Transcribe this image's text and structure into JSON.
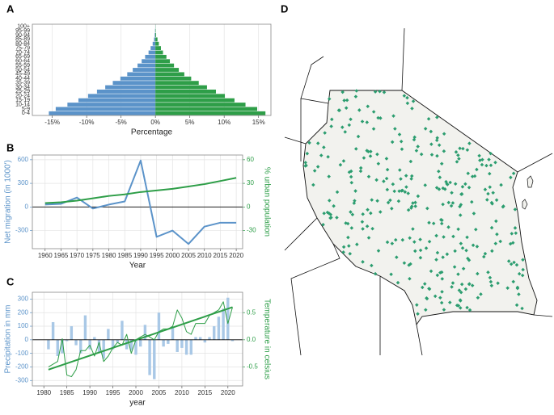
{
  "chart_data": [
    {
      "type": "bar",
      "orientation": "horizontal",
      "panel": "A",
      "categories": [
        "0-4",
        "5-9",
        "10-14",
        "15-19",
        "20-24",
        "25-29",
        "30-34",
        "35-39",
        "40-44",
        "45-49",
        "50-54",
        "55-59",
        "60-64",
        "65-69",
        "70-74",
        "75-79",
        "80-84",
        "85-89",
        "90-94",
        "95-99",
        "100+"
      ],
      "series": [
        {
          "color": "#5b93c9",
          "values": [
            -15.5,
            -14.5,
            -12.8,
            -11.2,
            -9.8,
            -8.5,
            -7.3,
            -6.2,
            -5.1,
            -4.1,
            -3.3,
            -2.6,
            -2.0,
            -1.5,
            -1.0,
            -0.7,
            -0.4,
            -0.2,
            -0.1,
            -0.05,
            -0.02
          ]
        },
        {
          "color": "#2e9e48",
          "values": [
            16.0,
            14.8,
            13.1,
            11.5,
            10.1,
            8.8,
            7.5,
            6.3,
            5.2,
            4.2,
            3.4,
            2.7,
            2.1,
            1.6,
            1.1,
            0.8,
            0.5,
            0.3,
            0.1,
            0.05,
            0.02
          ]
        }
      ],
      "xlim": [
        -17.9,
        16.8
      ],
      "xticks": [
        {
          "value": -15,
          "label": "-15%"
        },
        {
          "value": -10,
          "label": "-10%"
        },
        {
          "value": -5,
          "label": "-5%"
        },
        {
          "value": 0,
          "label": "0%"
        },
        {
          "value": 5,
          "label": "5%"
        },
        {
          "value": 10,
          "label": "10%"
        },
        {
          "value": 15,
          "label": "15%"
        }
      ],
      "xlabel": "Percentage",
      "grid": true
    },
    {
      "type": "line",
      "panel": "B",
      "x": [
        1960,
        1965,
        1970,
        1975,
        1980,
        1985,
        1990,
        1995,
        2000,
        2005,
        2010,
        2015,
        2020
      ],
      "xlim": [
        1956,
        2022
      ],
      "xticks": [
        1960,
        1965,
        1970,
        1975,
        1980,
        1985,
        1990,
        1995,
        2000,
        2005,
        2010,
        2015,
        2020
      ],
      "xlabel": "Year",
      "ylabel": "Net migration (in 1000')",
      "ylim": [
        -530,
        660
      ],
      "yticks": [
        -300,
        0,
        300,
        600
      ],
      "y2label": "% urban population",
      "y2lim": [
        -53,
        66
      ],
      "y2ticks": [
        -30,
        0,
        30,
        60
      ],
      "series": [
        {
          "color": "#5b93c9",
          "line_width": 2,
          "values": [
            30,
            40,
            120,
            -20,
            30,
            70,
            590,
            -380,
            -300,
            -470,
            -250,
            -200,
            -200
          ]
        },
        {
          "color": "#2e9e48",
          "axis": "y2",
          "line_width": 2,
          "values": [
            5,
            6,
            8,
            11,
            14,
            16,
            19,
            21,
            23,
            26,
            29,
            33,
            37
          ]
        }
      ],
      "grid": true,
      "zero_line": true
    },
    {
      "type": "bar_line",
      "panel": "C",
      "x": [
        1981,
        1982,
        1983,
        1984,
        1985,
        1986,
        1987,
        1988,
        1989,
        1990,
        1991,
        1992,
        1993,
        1994,
        1995,
        1996,
        1997,
        1998,
        1999,
        2000,
        2001,
        2002,
        2003,
        2004,
        2005,
        2006,
        2007,
        2008,
        2009,
        2010,
        2011,
        2012,
        2013,
        2014,
        2015,
        2016,
        2017,
        2018,
        2019,
        2020,
        2021
      ],
      "xlim": [
        1977.5,
        2023.2
      ],
      "xticks": [
        1980,
        1985,
        1990,
        1995,
        2000,
        2005,
        2010,
        2015,
        2020
      ],
      "xlabel": "year",
      "ylabel": "Precipitation in mm",
      "ylim": [
        -340,
        350
      ],
      "yticks": [
        -300,
        -200,
        -100,
        0,
        100,
        200,
        300
      ],
      "y2label": "Temperature in celsius",
      "y2lim": [
        -0.85,
        0.875
      ],
      "y2ticks": [
        -0.5,
        {
          "value": 0,
          "label": "0.0"
        },
        0.5
      ],
      "series": [
        {
          "kind": "bar",
          "color": "#a9c8e6",
          "values": [
            -70,
            130,
            -120,
            -100,
            -10,
            100,
            -40,
            -100,
            180,
            -70,
            20,
            -90,
            -140,
            80,
            -70,
            -20,
            140,
            -70,
            -80,
            -110,
            -50,
            110,
            -260,
            -290,
            200,
            -50,
            -30,
            90,
            -90,
            -60,
            -110,
            -110,
            20,
            20,
            -20,
            20,
            100,
            170,
            230,
            310,
            -10
          ]
        },
        {
          "kind": "line",
          "axis": "y2",
          "color": "#2e9e48",
          "line_width": 1,
          "values": [
            -0.5,
            -0.45,
            -0.4,
            0.02,
            -0.65,
            -0.68,
            -0.55,
            -0.2,
            -0.2,
            -0.1,
            -0.3,
            -0.05,
            -0.4,
            -0.3,
            -0.15,
            -0.05,
            -0.1,
            0.1,
            -0.25,
            0.0,
            0.05,
            0.1,
            0.05,
            0.0,
            0.15,
            0.2,
            0.2,
            0.25,
            0.55,
            0.4,
            0.15,
            0.1,
            0.3,
            0.3,
            0.3,
            0.45,
            0.5,
            0.55,
            0.7,
            0.3,
            0.6
          ]
        },
        {
          "kind": "line",
          "axis": "y2",
          "color": "#2e9e48",
          "line_width": 2,
          "x": [
            1981,
            2021
          ],
          "values": [
            -0.55,
            0.6
          ]
        }
      ],
      "grid": true,
      "zero_line": true
    },
    {
      "type": "map",
      "panel": "D"
    }
  ]
}
